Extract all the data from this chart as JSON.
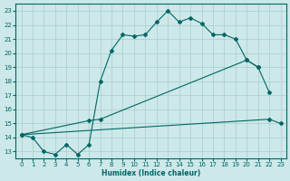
{
  "bg_color": "#cce8e8",
  "grid_color": "#aacccc",
  "line_color": "#006666",
  "xlabel": "Humidex (Indice chaleur)",
  "xlim": [
    -0.5,
    23.5
  ],
  "ylim": [
    12.5,
    23.5
  ],
  "yticks": [
    13,
    14,
    15,
    16,
    17,
    18,
    19,
    20,
    21,
    22,
    23
  ],
  "xticks": [
    0,
    1,
    2,
    3,
    4,
    5,
    6,
    7,
    8,
    9,
    10,
    11,
    12,
    13,
    14,
    15,
    16,
    17,
    18,
    19,
    20,
    21,
    22,
    23
  ],
  "series": [
    {
      "x": [
        0,
        1,
        2,
        3,
        4,
        5,
        6,
        7,
        8,
        9,
        10,
        11,
        12,
        13,
        14,
        15,
        16,
        17,
        18,
        19,
        20,
        21,
        22
      ],
      "y": [
        14.2,
        14.0,
        13.0,
        12.8,
        13.5,
        12.8,
        13.5,
        18.0,
        20.2,
        21.3,
        21.2,
        21.3,
        22.2,
        23.0,
        22.2,
        22.5,
        22.1,
        21.3,
        21.3,
        21.0,
        19.5,
        19.0,
        17.2
      ]
    },
    {
      "x": [
        0,
        6,
        7,
        20,
        21
      ],
      "y": [
        14.2,
        15.2,
        15.3,
        19.5,
        19.0
      ]
    },
    {
      "x": [
        0,
        22,
        23
      ],
      "y": [
        14.2,
        15.3,
        15.0
      ]
    }
  ]
}
